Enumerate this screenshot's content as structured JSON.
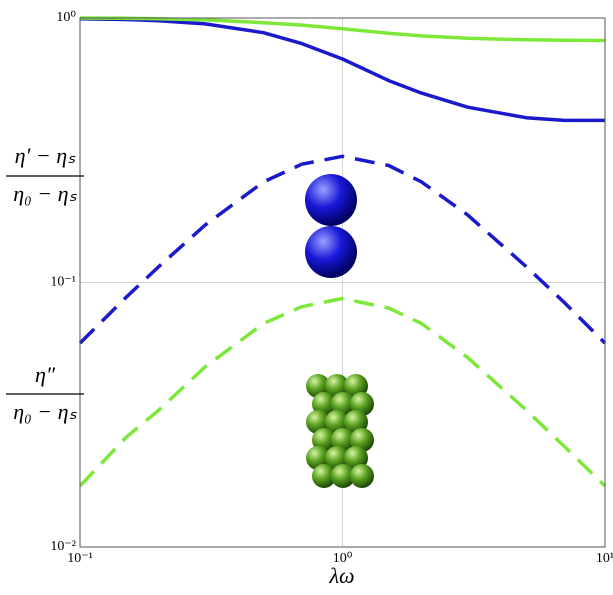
{
  "chart_data": {
    "type": "line",
    "x_label": "λω",
    "y_labels": [
      {
        "numerator": "η′ − ηₛ",
        "denominator": "η₀ − ηₛ"
      },
      {
        "numerator": "η″",
        "denominator": "η₀ − ηₛ"
      }
    ],
    "x": [
      0.1,
      0.15,
      0.2,
      0.3,
      0.5,
      0.7,
      1,
      1.5,
      2,
      3,
      5,
      7,
      10
    ],
    "series": [
      {
        "color": "#1a1acc",
        "dashed": false,
        "values": [
          0.994,
          0.987,
          0.977,
          0.95,
          0.88,
          0.8,
          0.7,
          0.58,
          0.52,
          0.46,
          0.42,
          0.41,
          0.41
        ]
      },
      {
        "color": "#7ee83a",
        "dashed": false,
        "values": [
          1.0,
          0.997,
          0.993,
          0.984,
          0.96,
          0.94,
          0.91,
          0.875,
          0.856,
          0.838,
          0.827,
          0.824,
          0.822
        ]
      },
      {
        "color": "#1a1acc",
        "dashed": true,
        "values": [
          0.059,
          0.088,
          0.115,
          0.165,
          0.24,
          0.28,
          0.3,
          0.277,
          0.24,
          0.18,
          0.115,
          0.084,
          0.059
        ]
      },
      {
        "color": "#7ee83a",
        "dashed": true,
        "values": [
          0.017,
          0.026,
          0.033,
          0.048,
          0.07,
          0.081,
          0.087,
          0.08,
          0.07,
          0.052,
          0.033,
          0.024,
          0.017
        ]
      }
    ],
    "xlog": true,
    "ylog": true,
    "xlim": [
      0.1,
      10
    ],
    "ylim": [
      0.01,
      1
    ],
    "xticks": [
      {
        "value": 0.1,
        "label": "10⁻¹"
      },
      {
        "value": 1,
        "label": "10⁰"
      },
      {
        "value": 10,
        "label": "10¹"
      }
    ],
    "yticks": [
      {
        "value": 0.01,
        "label": "10⁻²"
      },
      {
        "value": 0.1,
        "label": "10⁻¹"
      },
      {
        "value": 1,
        "label": "10⁰"
      }
    ],
    "grid": true
  }
}
